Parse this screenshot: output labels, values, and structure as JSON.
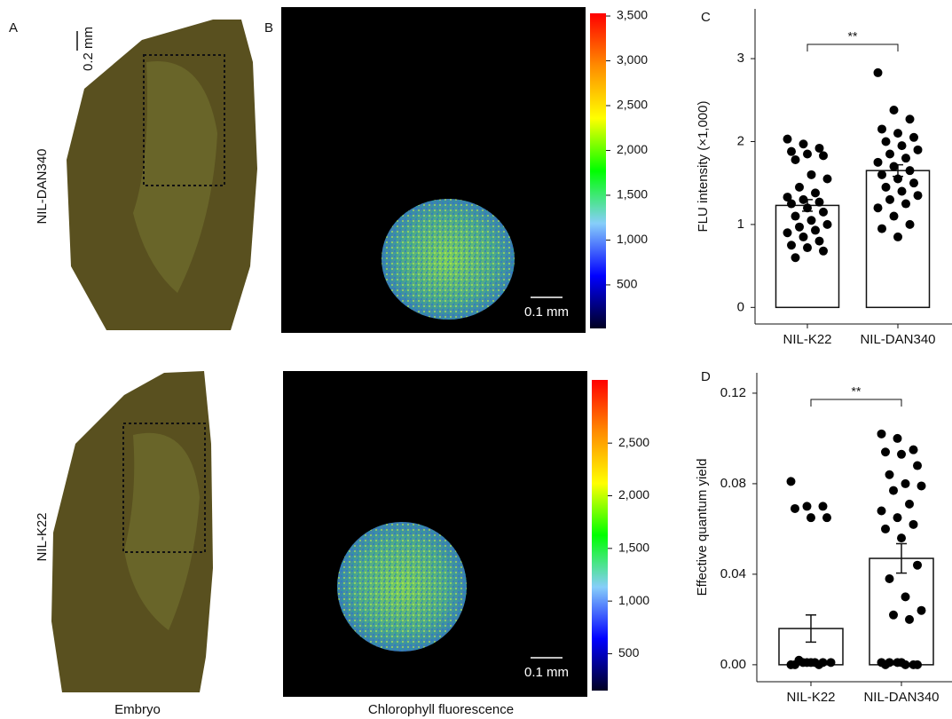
{
  "labels": {
    "panel_a": "A",
    "panel_b": "B",
    "scale_embryo": "0.2 mm",
    "row_top": "NIL-DAN340",
    "row_bottom": "NIL-K22",
    "scale_fluor_top": "0.1 mm",
    "scale_fluor_bottom": "0.1 mm",
    "caption_embryo": "Embryo",
    "caption_fluor": "Chlorophyll fluorescence"
  },
  "chart_data": [
    {
      "type": "colorbar",
      "colormap": [
        "#000022",
        "#0000ff",
        "#87cefa",
        "#00ff00",
        "#ffff00",
        "#ff8c00",
        "#ff0000"
      ],
      "ylim": [
        14,
        3530
      ],
      "yticks": [
        500,
        {
          "value": 1000,
          "label": "1,000"
        },
        {
          "value": 1500,
          "label": "1,500"
        },
        {
          "value": 2000,
          "label": "2,000"
        },
        {
          "value": 2500,
          "label": "2,500"
        },
        {
          "value": 3000,
          "label": "3,000"
        },
        {
          "value": 3500,
          "label": "3,500"
        }
      ]
    },
    {
      "type": "colorbar",
      "colormap": [
        "#000022",
        "#0000ff",
        "#87cefa",
        "#00ff00",
        "#ffff00",
        "#ff8c00",
        "#ff0000"
      ],
      "ylim": [
        150,
        3100
      ],
      "yticks": [
        500,
        {
          "value": 1000,
          "label": "1,000"
        },
        {
          "value": 1500,
          "label": "1,500"
        },
        {
          "value": 2000,
          "label": "2,000"
        },
        {
          "value": 2500,
          "label": "2,500"
        }
      ]
    },
    {
      "type": "bar",
      "label": "C",
      "ylabel": "FLU intensity (×1,000)",
      "significance": "**",
      "color": "#ffffff",
      "categories": [
        "NIL-K22",
        "NIL-DAN340"
      ],
      "values": [
        1.23,
        1.65
      ],
      "errors": [
        0.07,
        0.07
      ],
      "points": [
        [
          2.03,
          1.97,
          1.92,
          1.88,
          1.85,
          1.83,
          1.78,
          1.6,
          1.55,
          1.45,
          1.38,
          1.33,
          1.3,
          1.27,
          1.25,
          1.2,
          1.15,
          1.1,
          1.05,
          1.0,
          0.97,
          0.93,
          0.9,
          0.85,
          0.8,
          0.75,
          0.72,
          0.68,
          0.6
        ],
        [
          2.83,
          2.38,
          2.27,
          2.15,
          2.1,
          2.05,
          2.0,
          1.95,
          1.9,
          1.85,
          1.8,
          1.75,
          1.7,
          1.65,
          1.6,
          1.55,
          1.5,
          1.45,
          1.4,
          1.35,
          1.3,
          1.25,
          1.2,
          1.1,
          1.0,
          0.95,
          0.85
        ]
      ],
      "ylim": [
        -0.2,
        3.6
      ],
      "yticks": [
        0,
        1,
        2,
        3
      ]
    },
    {
      "type": "bar",
      "label": "D",
      "ylabel": "Effective quantum yield",
      "significance": "**",
      "color": "#ffffff",
      "categories": [
        "NIL-K22",
        "NIL-DAN340"
      ],
      "values": [
        0.016,
        0.047
      ],
      "errors": [
        0.006,
        0.0065
      ],
      "points": [
        [
          0.081,
          0.07,
          0.07,
          0.069,
          0.065,
          0.065,
          0.002,
          0.001,
          0.001,
          0.001,
          0,
          0,
          0.001,
          0.001,
          0,
          0.001
        ],
        [
          0.102,
          0.1,
          0.095,
          0.094,
          0.093,
          0.088,
          0.084,
          0.08,
          0.079,
          0.077,
          0.071,
          0.068,
          0.065,
          0.062,
          0.06,
          0.056,
          0.044,
          0.038,
          0.03,
          0.024,
          0.022,
          0.02,
          0.001,
          0.001,
          0,
          0,
          0.001,
          0,
          0.001,
          0
        ]
      ],
      "ylim": [
        -0.0075,
        0.129
      ],
      "yticks": [
        {
          "value": 0,
          "label": "0.00"
        },
        0.04,
        0.08,
        0.12
      ]
    }
  ]
}
